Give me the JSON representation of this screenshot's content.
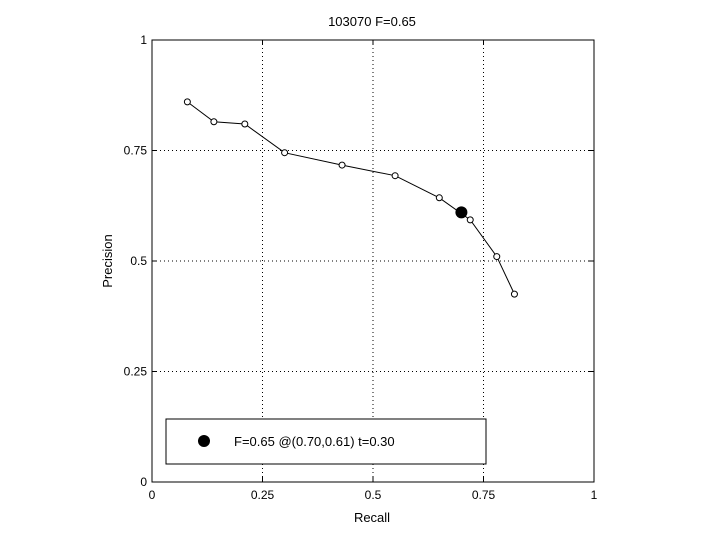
{
  "chart_data": {
    "type": "line",
    "title": "103070 F=0.65",
    "xlabel": "Recall",
    "ylabel": "Precision",
    "xlim": [
      0,
      1
    ],
    "ylim": [
      0,
      1
    ],
    "xticks": [
      0,
      0.25,
      0.5,
      0.75,
      1
    ],
    "yticks": [
      0,
      0.25,
      0.5,
      0.75,
      1
    ],
    "xtick_labels": [
      "0",
      "0.25",
      "0.5",
      "0.75",
      "1"
    ],
    "ytick_labels": [
      "0",
      "0.25",
      "0.5",
      "0.75",
      "1"
    ],
    "grid": true,
    "legend_position": "bottom-left",
    "series": [
      {
        "marker": "open-circle",
        "color": "#000000",
        "x": [
          0.08,
          0.14,
          0.21,
          0.3,
          0.43,
          0.55,
          0.65,
          0.72,
          0.78,
          0.82
        ],
        "y": [
          0.86,
          0.815,
          0.81,
          0.745,
          0.717,
          0.693,
          0.643,
          0.593,
          0.51,
          0.425
        ]
      }
    ],
    "highlight_point": {
      "x": 0.7,
      "y": 0.61,
      "marker": "filled-circle",
      "color": "#000000"
    },
    "legend": {
      "entries": [
        "F=0.65 @(0.70,0.61) t=0.30"
      ]
    }
  }
}
